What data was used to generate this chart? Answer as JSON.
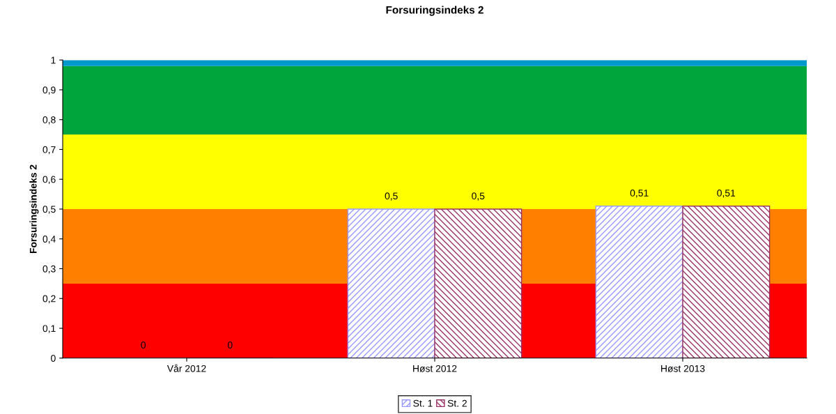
{
  "chart_data": {
    "type": "bar",
    "title": "Forsuringsindeks 2",
    "ylabel": "Forsuringsindeks 2",
    "categories": [
      "Vår 2012",
      "Høst 2012",
      "Høst 2013"
    ],
    "series": [
      {
        "name": "St. 1",
        "color": "#9999ff",
        "values": [
          0,
          0.5,
          0.51
        ],
        "value_labels": [
          "0",
          "0,5",
          "0,51"
        ]
      },
      {
        "name": "St. 2",
        "color": "#993366",
        "values": [
          0,
          0.5,
          0.51
        ],
        "value_labels": [
          "0",
          "0,5",
          "0,51"
        ]
      }
    ],
    "bands": [
      {
        "axis": "y",
        "from": 0,
        "to": 0.25,
        "color": "#ff0000"
      },
      {
        "axis": "y",
        "from": 0.25,
        "to": 0.5,
        "color": "#ff7f00"
      },
      {
        "axis": "y",
        "from": 0.5,
        "to": 0.75,
        "color": "#ffff00"
      },
      {
        "axis": "y",
        "from": 0.75,
        "to": 0.98,
        "color": "#00a63c"
      },
      {
        "axis": "y",
        "from": 0.98,
        "to": 1,
        "color": "#0099cc"
      }
    ],
    "ylim": [
      0,
      1
    ],
    "yticks": [
      0,
      {
        "value": 0.1,
        "label": "0,1"
      },
      {
        "value": 0.2,
        "label": "0,2"
      },
      {
        "value": 0.3,
        "label": "0,3"
      },
      {
        "value": 0.4,
        "label": "0,4"
      },
      {
        "value": 0.5,
        "label": "0,5"
      },
      {
        "value": 0.6,
        "label": "0,6"
      },
      {
        "value": 0.7,
        "label": "0,7"
      },
      {
        "value": 0.8,
        "label": "0,8"
      },
      {
        "value": 0.9,
        "label": "0,9"
      },
      1
    ],
    "grid": false,
    "legend": "bottom"
  }
}
